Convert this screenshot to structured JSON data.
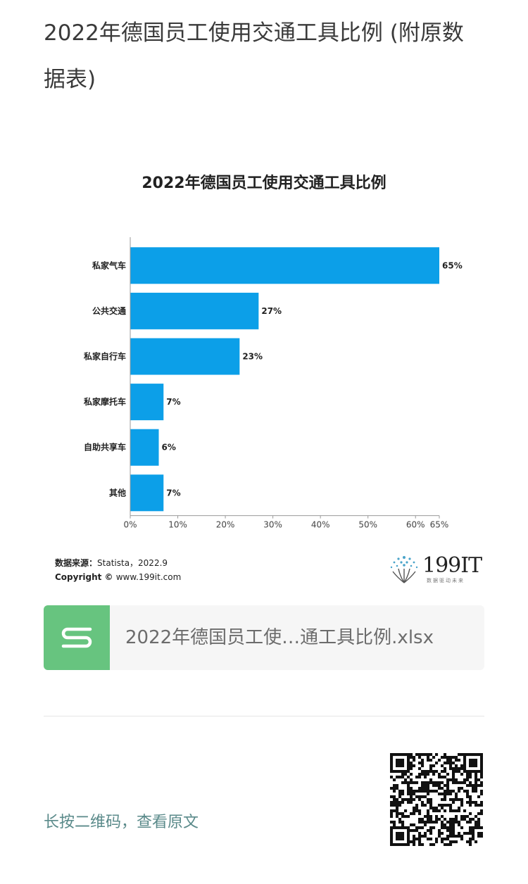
{
  "article": {
    "title": "2022年德国员工使用交通工具比例 (附原数据表)"
  },
  "chart": {
    "title": "2022年德国员工使用交通工具比例",
    "source_label": "数据来源：",
    "source_value": "Statista，2022.9",
    "copyright_label": "Copyright ©",
    "copyright_value": "www.199it.com",
    "logo_text": "199IT",
    "logo_tagline": "数据驱动未来"
  },
  "chart_data": {
    "type": "bar",
    "orientation": "horizontal",
    "title": "2022年德国员工使用交通工具比例",
    "categories": [
      "私家气车",
      "公共交通",
      "私家自行车",
      "私家摩托车",
      "自助共享车",
      "其他"
    ],
    "values": [
      65,
      27,
      23,
      7,
      6,
      7
    ],
    "value_labels": [
      "65%",
      "27%",
      "23%",
      "7%",
      "6%",
      "7%"
    ],
    "xlim": [
      0,
      65
    ],
    "xticks": [
      0,
      10,
      20,
      30,
      40,
      50,
      60,
      65
    ],
    "xtick_labels": [
      "0%",
      "10%",
      "20%",
      "30%",
      "40%",
      "50%",
      "60%",
      "65%"
    ],
    "bar_color": "#0c9fe8",
    "grid": false,
    "legend": "none"
  },
  "attachment": {
    "file_name": "2022年德国员工使…通工具比例.xlsx",
    "icon": "spreadsheet-s-icon",
    "icon_color": "#67c47f"
  },
  "footer": {
    "qr_hint": "长按二维码，查看原文",
    "qr_icon": "qr-code-icon"
  }
}
